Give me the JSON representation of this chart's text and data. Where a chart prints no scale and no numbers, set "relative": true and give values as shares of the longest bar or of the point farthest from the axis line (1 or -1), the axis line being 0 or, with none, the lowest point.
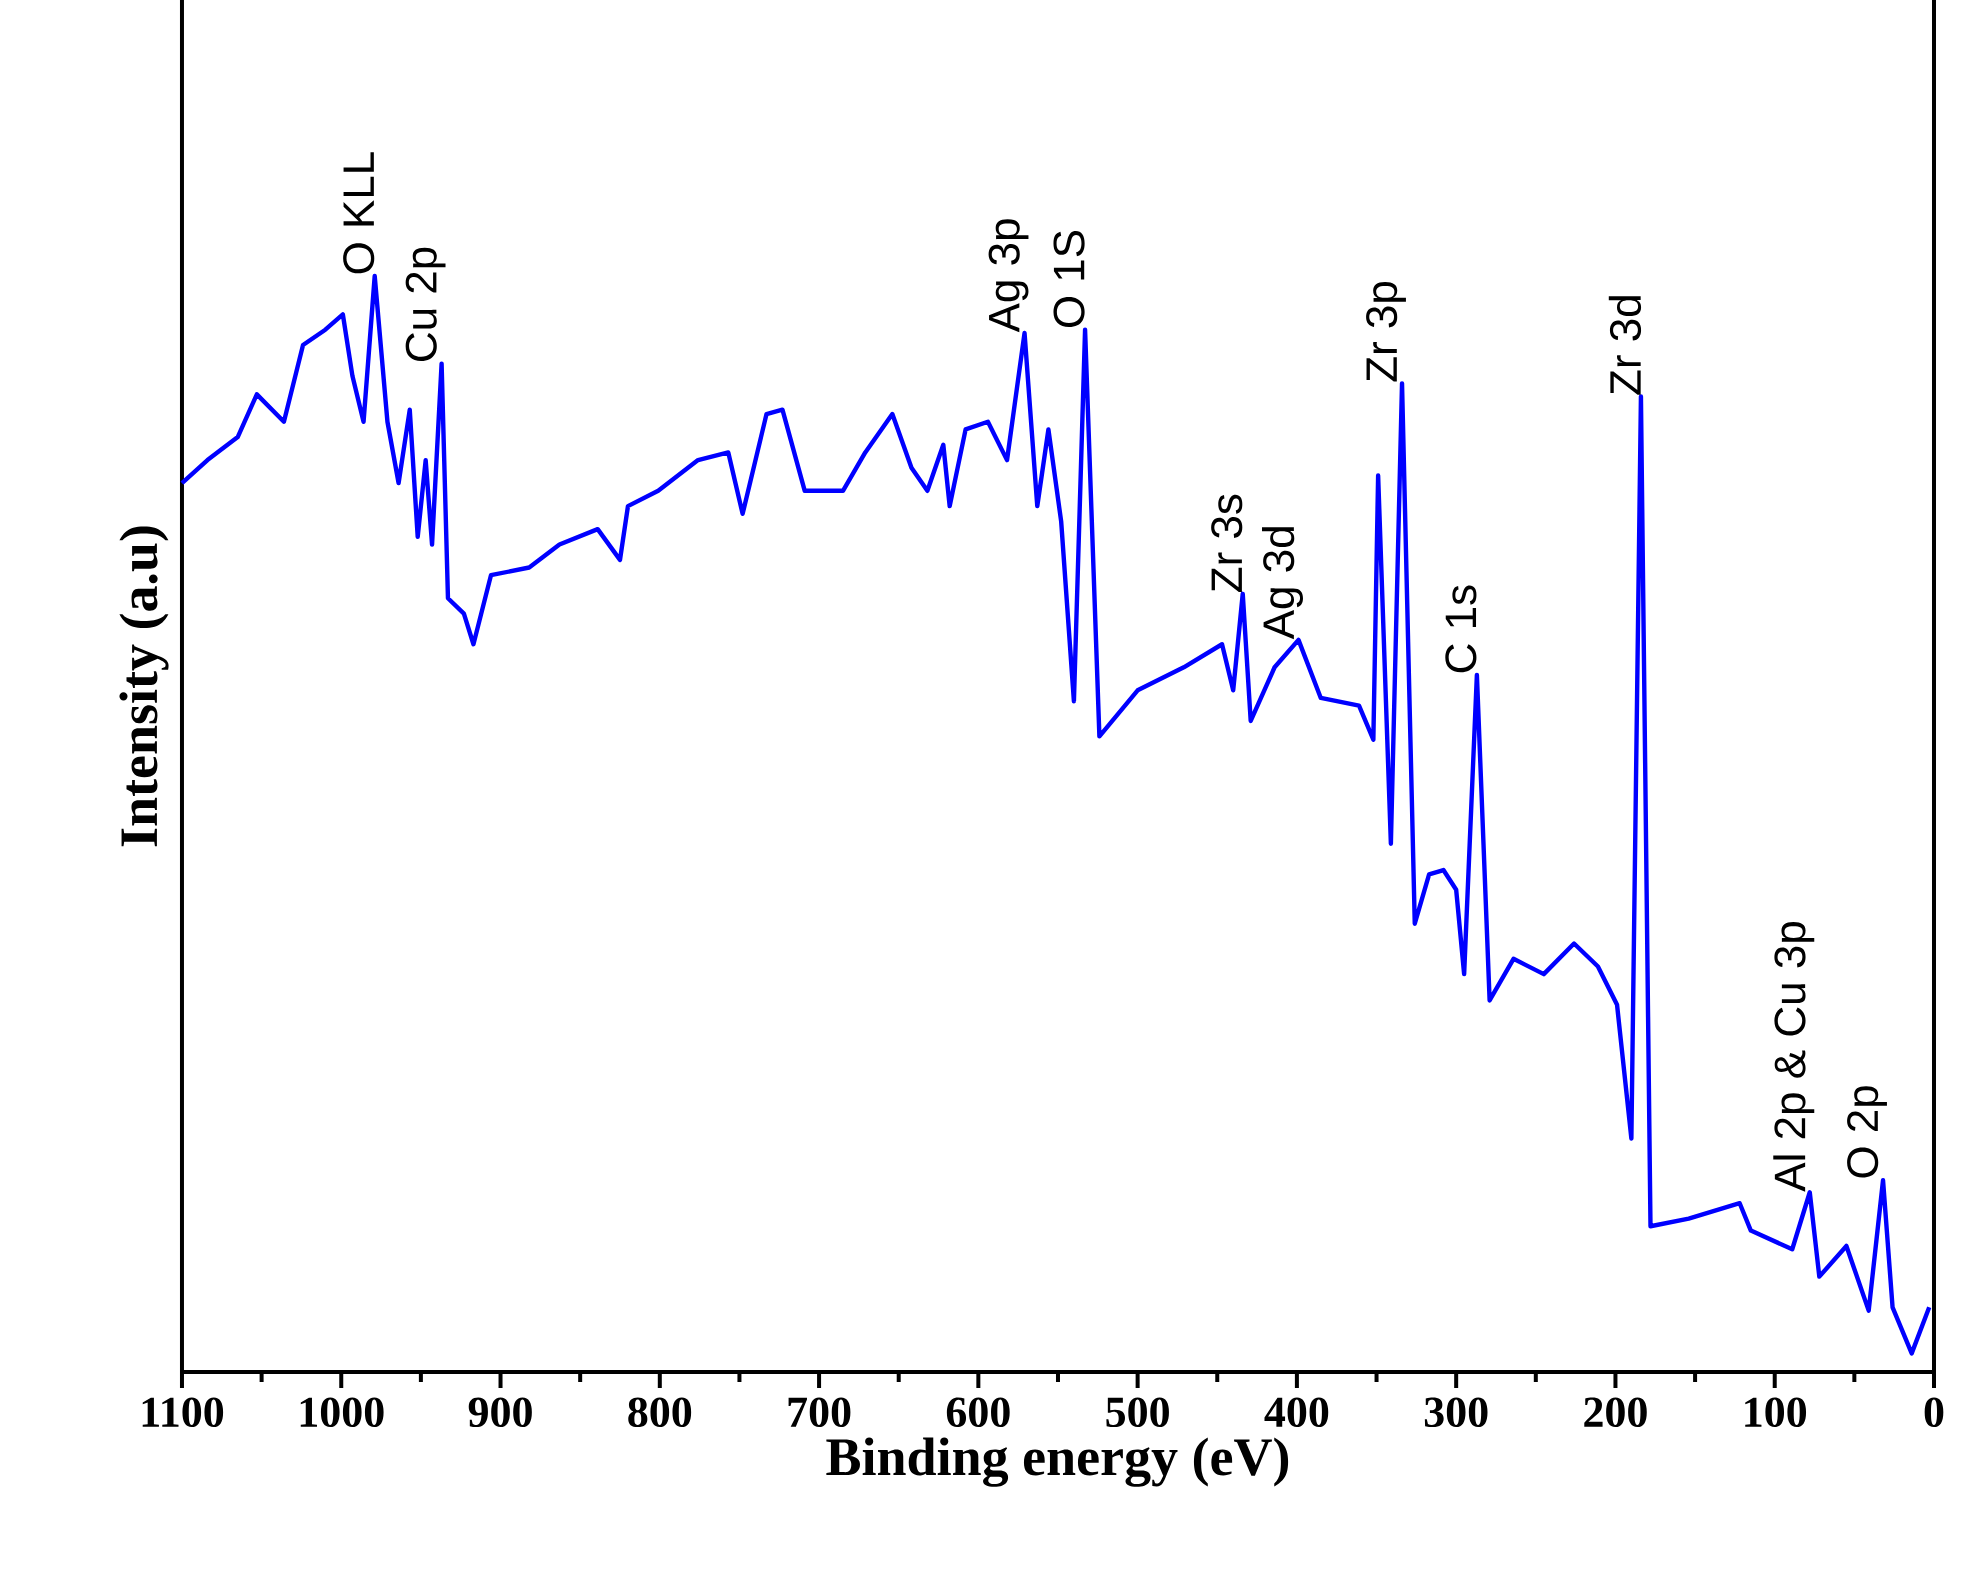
{
  "chart_data": {
    "type": "line",
    "relative": true,
    "xlabel": "Binding energy (eV)",
    "ylabel": "Intensity (a.u)",
    "color": "#0000ff",
    "xlim": [
      1100,
      0
    ],
    "xticks": [
      1100,
      1000,
      900,
      800,
      700,
      600,
      500,
      400,
      300,
      200,
      100,
      0
    ],
    "x": [
      1100,
      1084,
      1065,
      1053,
      1036,
      1024,
      1010,
      999,
      993,
      986,
      979,
      971,
      964,
      957,
      952,
      947,
      943,
      937,
      933,
      923,
      917,
      906,
      882,
      863,
      839,
      825,
      820,
      801,
      776,
      757,
      748,
      733,
      723,
      709,
      685,
      671,
      654,
      642,
      632,
      622,
      618,
      608,
      594,
      582,
      571,
      563,
      556,
      548,
      540,
      533,
      524,
      500,
      471,
      447,
      440,
      434,
      429,
      414,
      399,
      385,
      361,
      352,
      349,
      341,
      334,
      326,
      317,
      308,
      300,
      295,
      287,
      279,
      264,
      245,
      226,
      211,
      199,
      190,
      184,
      178,
      154,
      122,
      115,
      89,
      78,
      72,
      55,
      41,
      32,
      26,
      14,
      3
    ],
    "values": [
      0.811,
      0.832,
      0.853,
      0.892,
      0.867,
      0.937,
      0.951,
      0.965,
      0.909,
      0.867,
      1.0,
      0.867,
      0.811,
      0.878,
      0.762,
      0.832,
      0.755,
      0.92,
      0.706,
      0.692,
      0.664,
      0.727,
      0.734,
      0.755,
      0.769,
      0.741,
      0.79,
      0.804,
      0.832,
      0.839,
      0.783,
      0.874,
      0.878,
      0.804,
      0.804,
      0.839,
      0.874,
      0.825,
      0.804,
      0.846,
      0.79,
      0.86,
      0.867,
      0.832,
      0.948,
      0.79,
      0.86,
      0.776,
      0.612,
      0.951,
      0.58,
      0.622,
      0.643,
      0.664,
      0.622,
      0.71,
      0.594,
      0.643,
      0.668,
      0.615,
      0.608,
      0.577,
      0.818,
      0.482,
      0.902,
      0.409,
      0.454,
      0.458,
      0.44,
      0.363,
      0.636,
      0.339,
      0.377,
      0.363,
      0.391,
      0.37,
      0.335,
      0.213,
      0.89,
      0.133,
      0.14,
      0.154,
      0.129,
      0.112,
      0.164,
      0.087,
      0.115,
      0.056,
      0.175,
      0.059,
      0.017,
      0.059
    ],
    "annotations": [
      {
        "text": "O KLL",
        "x": 979,
        "y": 1.0
      },
      {
        "text": "Cu 2p",
        "x": 937,
        "y": 0.92
      },
      {
        "text": "Ag 3p",
        "x": 571,
        "y": 0.948
      },
      {
        "text": "O 1S",
        "x": 533,
        "y": 0.951
      },
      {
        "text": "Zr 3s",
        "x": 434,
        "y": 0.71
      },
      {
        "text": "Ag 3d",
        "x": 399,
        "y": 0.668
      },
      {
        "text": "Zr 3p",
        "x": 334,
        "y": 0.902
      },
      {
        "text": "C 1s",
        "x": 287,
        "y": 0.636
      },
      {
        "text": "Zr 3d",
        "x": 184,
        "y": 0.89
      },
      {
        "text": "Al 2p & Cu 3p",
        "x": 78,
        "y": 0.164
      },
      {
        "text": "O 2p",
        "x": 32,
        "y": 0.175
      }
    ]
  }
}
